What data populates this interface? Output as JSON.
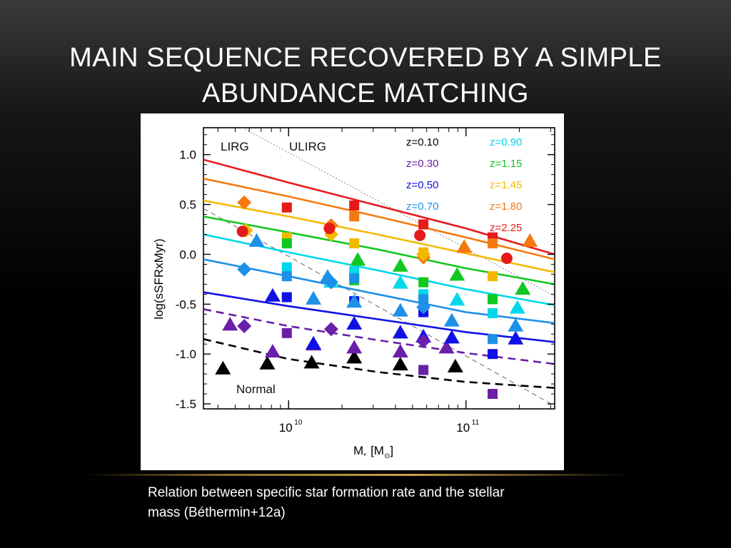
{
  "slide": {
    "title_line1": "MAIN SEQUENCE RECOVERED BY A SIMPLE",
    "title_line2": "ABUNDANCE MATCHING",
    "caption_line1": "Relation between specific star formation rate and the stellar",
    "caption_line2": "mass (Béthermin+12a)"
  },
  "chart_data": {
    "type": "scatter",
    "ylabel": "log(sSFRxMyr)",
    "xlabel": "M",
    "xlabel_sub": "*",
    "xlabel_unit": "[M",
    "xlabel_unit_sub": "⊙",
    "xlabel_unit_close": "]",
    "xlim_log10": [
      9.52,
      11.5
    ],
    "ylim": [
      -1.55,
      1.27
    ],
    "y_ticks": [
      -1.5,
      -1.0,
      -0.5,
      0.0,
      0.5,
      1.0
    ],
    "y_tick_labels": [
      "-1.5",
      "-1.0",
      "-0.5",
      "0.0",
      "0.5",
      "1.0"
    ],
    "x_major_ticks": [
      10,
      11
    ],
    "x_tick_labels": [
      "10",
      "10"
    ],
    "x_tick_exponents": [
      "10",
      "11"
    ],
    "region_labels": {
      "lirg": "LIRG",
      "ulirg": "ULIRG",
      "normal": "Normal"
    },
    "colors": {
      "z010": "#000000",
      "z030": "#6a1fa8",
      "z050": "#1010e6",
      "z070": "#1e90e8",
      "z090": "#00d8ea",
      "z115": "#12c820",
      "z145": "#f5b800",
      "z180": "#f47a10",
      "z225": "#e61a1a"
    },
    "legend": [
      {
        "label": "z=0.10",
        "color_key": "z010",
        "column": "left"
      },
      {
        "label": "z=0.30",
        "color_key": "z030",
        "column": "left"
      },
      {
        "label": "z=0.50",
        "color_key": "z050",
        "column": "left"
      },
      {
        "label": "z=0.70",
        "color_key": "z070",
        "column": "left"
      },
      {
        "label": "z=0.90",
        "color_key": "z090",
        "column": "right"
      },
      {
        "label": "z=1.15",
        "color_key": "z115",
        "column": "right"
      },
      {
        "label": "z=1.45",
        "color_key": "z145",
        "column": "right"
      },
      {
        "label": "z=1.80",
        "color_key": "z180",
        "column": "right"
      },
      {
        "label": "z=2.25",
        "color_key": "z225",
        "column": "right"
      }
    ],
    "guides": [
      {
        "name": "lirg-ulirg-dotted-line",
        "style": "dotted",
        "points": [
          [
            9.74,
            1.27
          ],
          [
            11.5,
            -0.42
          ]
        ]
      },
      {
        "name": "thin-dashed-guide-line",
        "style": "thin-dashed",
        "points": [
          [
            9.52,
            0.46
          ],
          [
            11.5,
            -1.52
          ]
        ]
      }
    ],
    "model_curves": [
      {
        "z": "0.10",
        "color_key": "z010",
        "style": "dashed",
        "points": [
          [
            9.52,
            -0.85
          ],
          [
            10.0,
            -1.05
          ],
          [
            10.5,
            -1.18
          ],
          [
            11.0,
            -1.28
          ],
          [
            11.5,
            -1.34
          ]
        ]
      },
      {
        "z": "0.30",
        "color_key": "z030",
        "style": "dashed",
        "points": [
          [
            9.52,
            -0.55
          ],
          [
            10.0,
            -0.72
          ],
          [
            10.5,
            -0.86
          ],
          [
            11.0,
            -0.99
          ],
          [
            11.5,
            -1.1
          ]
        ]
      },
      {
        "z": "0.50",
        "color_key": "z050",
        "style": "solid",
        "points": [
          [
            9.52,
            -0.38
          ],
          [
            10.0,
            -0.52
          ],
          [
            10.5,
            -0.65
          ],
          [
            11.0,
            -0.78
          ],
          [
            11.5,
            -0.88
          ]
        ]
      },
      {
        "z": "0.70",
        "color_key": "z070",
        "style": "solid",
        "points": [
          [
            9.52,
            -0.05
          ],
          [
            10.0,
            -0.22
          ],
          [
            10.5,
            -0.4
          ],
          [
            11.0,
            -0.58
          ],
          [
            11.5,
            -0.69
          ]
        ]
      },
      {
        "z": "0.90",
        "color_key": "z090",
        "style": "solid",
        "points": [
          [
            9.52,
            0.2
          ],
          [
            10.0,
            0.02
          ],
          [
            10.5,
            -0.16
          ],
          [
            11.0,
            -0.35
          ],
          [
            11.5,
            -0.51
          ]
        ]
      },
      {
        "z": "1.15",
        "color_key": "z115",
        "style": "solid",
        "points": [
          [
            9.52,
            0.38
          ],
          [
            10.0,
            0.22
          ],
          [
            10.5,
            0.05
          ],
          [
            11.0,
            -0.14
          ],
          [
            11.5,
            -0.3
          ]
        ]
      },
      {
        "z": "1.45",
        "color_key": "z145",
        "style": "solid",
        "points": [
          [
            9.52,
            0.54
          ],
          [
            10.0,
            0.38
          ],
          [
            10.5,
            0.2
          ],
          [
            11.0,
            0.01
          ],
          [
            11.5,
            -0.18
          ]
        ]
      },
      {
        "z": "1.80",
        "color_key": "z180",
        "style": "solid",
        "points": [
          [
            9.52,
            0.76
          ],
          [
            10.0,
            0.58
          ],
          [
            10.5,
            0.38
          ],
          [
            11.0,
            0.17
          ],
          [
            11.5,
            -0.05
          ]
        ]
      },
      {
        "z": "2.25",
        "color_key": "z225",
        "style": "solid",
        "points": [
          [
            9.52,
            0.95
          ],
          [
            10.0,
            0.72
          ],
          [
            10.5,
            0.49
          ],
          [
            11.0,
            0.26
          ],
          [
            11.5,
            0.0
          ]
        ]
      }
    ],
    "observations": [
      {
        "marker": "square",
        "color_key": "z225",
        "points": [
          [
            9.99,
            0.47
          ],
          [
            10.37,
            0.49
          ],
          [
            10.76,
            0.3
          ],
          [
            11.15,
            0.17
          ]
        ]
      },
      {
        "marker": "square",
        "color_key": "z180",
        "points": [
          [
            10.37,
            0.38
          ],
          [
            11.15,
            0.11
          ]
        ]
      },
      {
        "marker": "square",
        "color_key": "z145",
        "points": [
          [
            9.99,
            0.17
          ],
          [
            10.37,
            0.11
          ],
          [
            10.76,
            0.02
          ],
          [
            11.15,
            -0.22
          ]
        ]
      },
      {
        "marker": "square",
        "color_key": "z115",
        "points": [
          [
            9.99,
            0.11
          ],
          [
            10.37,
            -0.26
          ],
          [
            10.76,
            -0.28
          ],
          [
            11.15,
            -0.45
          ]
        ]
      },
      {
        "marker": "square",
        "color_key": "z090",
        "points": [
          [
            9.99,
            -0.13
          ],
          [
            10.37,
            -0.17
          ],
          [
            10.76,
            -0.4
          ],
          [
            11.15,
            -0.59
          ]
        ]
      },
      {
        "marker": "square",
        "color_key": "z070",
        "points": [
          [
            9.99,
            -0.22
          ],
          [
            10.37,
            -0.24
          ],
          [
            10.76,
            -0.45
          ],
          [
            11.15,
            -0.85
          ]
        ]
      },
      {
        "marker": "square",
        "color_key": "z050",
        "points": [
          [
            9.99,
            -0.43
          ],
          [
            10.37,
            -0.47
          ],
          [
            10.76,
            -0.58
          ],
          [
            11.15,
            -1.0
          ]
        ]
      },
      {
        "marker": "square",
        "color_key": "z030",
        "points": [
          [
            9.99,
            -0.79
          ],
          [
            10.76,
            -1.16
          ],
          [
            11.15,
            -1.4
          ]
        ]
      },
      {
        "marker": "triangle",
        "color_key": "z010",
        "points": [
          [
            9.63,
            -1.14
          ],
          [
            9.88,
            -1.09
          ],
          [
            10.13,
            -1.08
          ],
          [
            10.37,
            -1.03
          ],
          [
            10.63,
            -1.1
          ],
          [
            10.94,
            -1.12
          ]
        ]
      },
      {
        "marker": "triangle",
        "color_key": "z030",
        "points": [
          [
            9.67,
            -0.7
          ],
          [
            9.91,
            -0.97
          ],
          [
            10.14,
            -0.9
          ],
          [
            10.37,
            -0.93
          ],
          [
            10.63,
            -0.97
          ],
          [
            10.89,
            -0.93
          ]
        ]
      },
      {
        "marker": "triangle",
        "color_key": "z050",
        "points": [
          [
            9.91,
            -0.41
          ],
          [
            10.14,
            -0.89
          ],
          [
            10.37,
            -0.69
          ],
          [
            10.63,
            -0.78
          ],
          [
            10.76,
            -0.82
          ],
          [
            10.92,
            -0.83
          ],
          [
            11.28,
            -0.84
          ]
        ]
      },
      {
        "marker": "triangle",
        "color_key": "z070",
        "points": [
          [
            9.82,
            0.14
          ],
          [
            10.14,
            -0.44
          ],
          [
            10.22,
            -0.22
          ],
          [
            10.37,
            -0.47
          ],
          [
            10.63,
            -0.56
          ],
          [
            10.92,
            -0.66
          ],
          [
            11.28,
            -0.71
          ]
        ]
      },
      {
        "marker": "triangle",
        "color_key": "z090",
        "points": [
          [
            10.24,
            -0.27
          ],
          [
            10.63,
            -0.28
          ],
          [
            10.95,
            -0.45
          ],
          [
            11.29,
            -0.53
          ]
        ]
      },
      {
        "marker": "triangle",
        "color_key": "z115",
        "points": [
          [
            10.39,
            -0.05
          ],
          [
            10.63,
            -0.11
          ],
          [
            10.95,
            -0.2
          ],
          [
            11.32,
            -0.34
          ]
        ]
      },
      {
        "marker": "triangle",
        "color_key": "z180",
        "points": [
          [
            10.99,
            0.08
          ],
          [
            11.36,
            0.14
          ]
        ]
      },
      {
        "marker": "diamond",
        "color_key": "z180",
        "points": [
          [
            9.75,
            0.52
          ],
          [
            10.24,
            0.29
          ],
          [
            10.76,
            -0.03
          ]
        ]
      },
      {
        "marker": "diamond",
        "color_key": "z145",
        "points": [
          [
            9.76,
            0.24
          ],
          [
            10.24,
            0.2
          ],
          [
            10.76,
            0.0
          ]
        ]
      },
      {
        "marker": "diamond",
        "color_key": "z070",
        "points": [
          [
            9.75,
            -0.15
          ],
          [
            10.24,
            -0.28
          ],
          [
            10.76,
            -0.53
          ]
        ]
      },
      {
        "marker": "diamond",
        "color_key": "z030",
        "points": [
          [
            9.75,
            -0.72
          ],
          [
            10.24,
            -0.75
          ],
          [
            10.76,
            -0.87
          ]
        ]
      },
      {
        "marker": "circle",
        "color_key": "z225",
        "points": [
          [
            9.74,
            0.23
          ],
          [
            10.23,
            0.26
          ],
          [
            10.74,
            0.19
          ],
          [
            11.23,
            -0.04
          ]
        ]
      }
    ]
  }
}
